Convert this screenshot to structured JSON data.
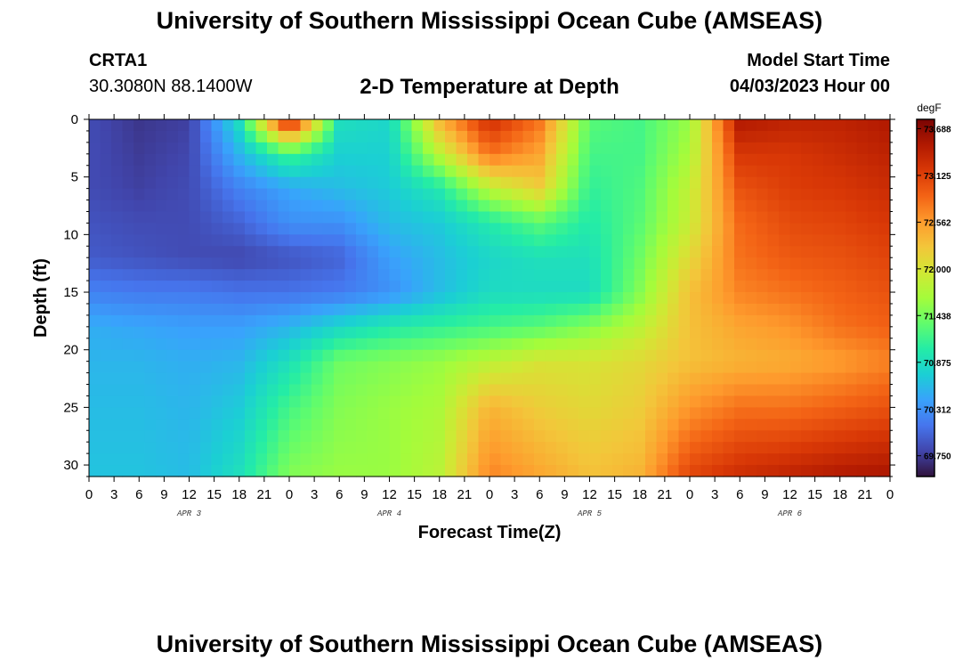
{
  "header": {
    "title": "University of Southern Mississippi Ocean Cube (AMSEAS)",
    "station": "CRTA1",
    "latlon": "30.3080N  88.1400W",
    "subtitle": "2-D Temperature at Depth",
    "model_start_label": "Model Start Time",
    "model_start_value": "04/03/2023 Hour 00"
  },
  "footer": {
    "title": "University of Southern Mississippi Ocean Cube (AMSEAS)"
  },
  "colors": {
    "colormap": [
      "#30123b",
      "#4145ab",
      "#4675ed",
      "#39a2fc",
      "#1bcfd4",
      "#24eca6",
      "#61fc6c",
      "#a4fc3b",
      "#d1e834",
      "#f3c63a",
      "#fe9b2d",
      "#f36315",
      "#d93806",
      "#b11901",
      "#7a0403"
    ]
  },
  "chart_data": {
    "type": "heatmap",
    "title": "2-D Temperature at Depth",
    "xlabel": "Forecast Time(Z)",
    "ylabel": "Depth (ft)",
    "x_tick_labels": [
      "0",
      "3",
      "6",
      "9",
      "12",
      "15",
      "18",
      "21",
      "0",
      "3",
      "6",
      "9",
      "12",
      "15",
      "18",
      "21",
      "0",
      "3",
      "6",
      "9",
      "12",
      "15",
      "18",
      "21",
      "0",
      "3",
      "6",
      "9",
      "12",
      "15",
      "18",
      "21",
      "0"
    ],
    "x_range_hours": [
      0,
      96
    ],
    "day_labels": [
      "APR 3",
      "APR 4",
      "APR 5",
      "APR 6"
    ],
    "y_ticks": [
      0,
      5,
      10,
      15,
      20,
      25,
      30
    ],
    "ylim": [
      31,
      0
    ],
    "colorbar": {
      "unit": "degF",
      "labels": [
        "73.688",
        "73.125",
        "72.562",
        "72.000",
        "71.438",
        "70.875",
        "70.312",
        "69.750"
      ],
      "vmin": 69.5,
      "vmax": 73.8
    },
    "depths_ft": [
      0,
      3,
      6,
      9,
      12,
      15,
      18,
      21,
      25,
      31
    ],
    "times_hours": [
      0,
      6,
      12,
      18,
      24,
      30,
      36,
      42,
      48,
      54,
      60,
      66,
      72,
      78,
      84,
      90,
      96
    ],
    "temperature_degF": [
      [
        69.85,
        69.72,
        69.78,
        70.9,
        73.55,
        70.9,
        70.8,
        72.4,
        73.3,
        72.8,
        71.3,
        71.2,
        71.6,
        73.5,
        73.4,
        73.4,
        73.5
      ],
      [
        69.85,
        69.75,
        69.82,
        70.55,
        71.2,
        70.75,
        70.75,
        71.8,
        72.8,
        72.5,
        71.2,
        71.2,
        71.7,
        73.2,
        73.2,
        73.3,
        73.4
      ],
      [
        69.85,
        69.78,
        69.85,
        70.2,
        70.45,
        70.6,
        70.7,
        71.0,
        71.8,
        72.2,
        71.1,
        71.25,
        71.85,
        73.0,
        73.15,
        73.2,
        73.3
      ],
      [
        69.9,
        69.85,
        69.85,
        70.0,
        70.3,
        70.3,
        70.6,
        70.7,
        71.0,
        71.3,
        71.0,
        71.3,
        71.9,
        72.85,
        73.05,
        73.1,
        73.2
      ],
      [
        69.95,
        69.9,
        69.85,
        69.82,
        69.9,
        70.0,
        70.4,
        70.6,
        70.8,
        70.9,
        70.9,
        71.4,
        72.1,
        72.8,
        72.95,
        73.0,
        73.1
      ],
      [
        70.2,
        70.15,
        70.15,
        70.1,
        70.1,
        70.15,
        70.3,
        70.6,
        70.85,
        70.85,
        70.85,
        71.5,
        72.3,
        72.7,
        72.8,
        72.9,
        73.0
      ],
      [
        70.5,
        70.45,
        70.4,
        70.4,
        70.55,
        70.8,
        71.0,
        71.1,
        71.2,
        71.3,
        71.5,
        71.8,
        72.3,
        72.5,
        72.6,
        72.8,
        72.9
      ],
      [
        70.55,
        70.55,
        70.5,
        70.55,
        70.9,
        71.4,
        71.5,
        71.6,
        71.8,
        72.0,
        72.0,
        72.1,
        72.3,
        72.4,
        72.45,
        72.55,
        72.7
      ],
      [
        70.6,
        70.6,
        70.55,
        70.7,
        71.2,
        71.5,
        71.6,
        71.7,
        72.4,
        72.2,
        72.1,
        72.2,
        72.6,
        72.8,
        72.8,
        72.9,
        73.0
      ],
      [
        70.65,
        70.65,
        70.6,
        70.9,
        71.5,
        71.6,
        71.6,
        71.8,
        72.7,
        72.5,
        72.3,
        72.4,
        73.1,
        73.3,
        73.4,
        73.5,
        73.55
      ]
    ]
  }
}
